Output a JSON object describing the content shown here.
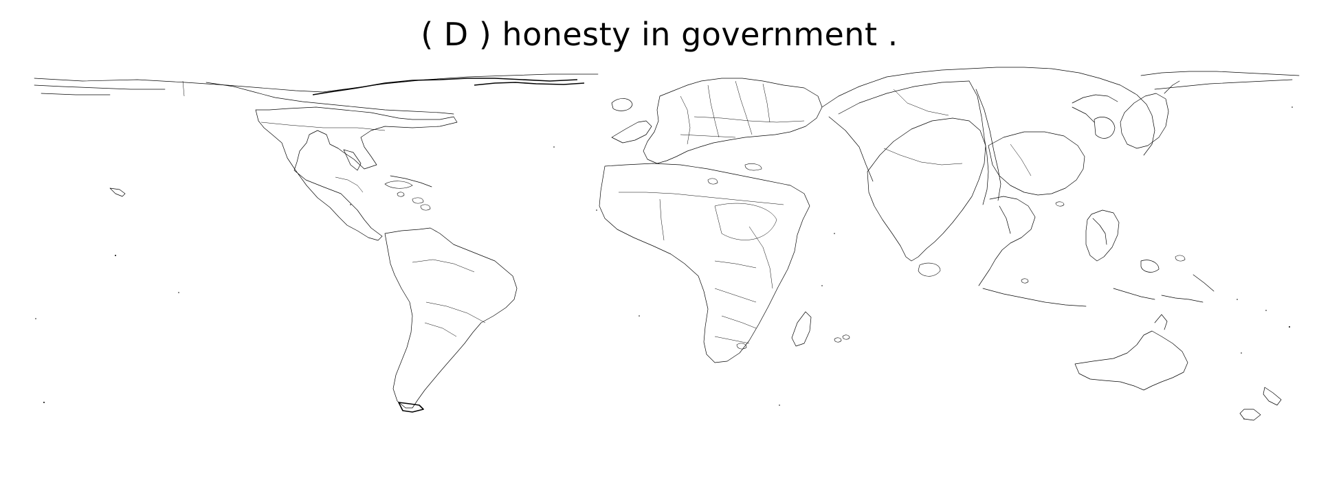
{
  "figure": {
    "title": "( D ) honesty in government .",
    "map_type": "cartogram",
    "line_color": "#000000",
    "background_color": "#ffffff"
  },
  "map": {
    "regions": [
      "north-america",
      "greenland-arctic",
      "south-america",
      "europe",
      "africa",
      "russia-north-asia",
      "south-asia",
      "east-asia",
      "southeast-asia",
      "australia",
      "new-zealand"
    ]
  }
}
